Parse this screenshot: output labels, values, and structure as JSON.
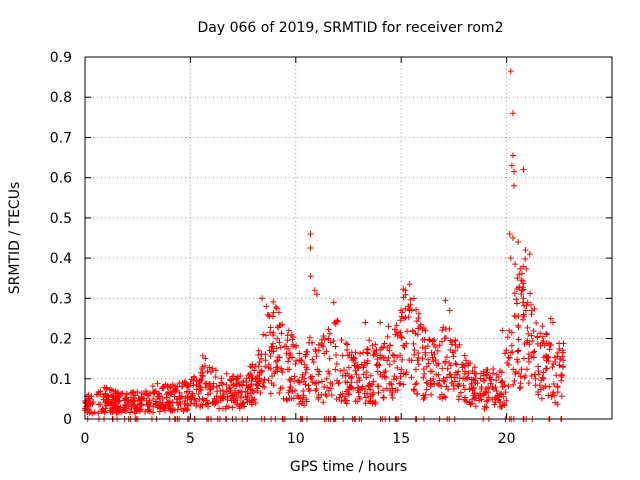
{
  "chart_data": {
    "type": "scatter",
    "title": "Day 066 of 2019, SRMTID for receiver rom2",
    "xlabel": "GPS time / hours",
    "ylabel": "SRMTID / TECUs",
    "xlim": [
      0,
      25
    ],
    "ylim": [
      0,
      0.9
    ],
    "xticks": [
      0,
      5,
      10,
      15,
      20
    ],
    "yticks": [
      0,
      0.1,
      0.2,
      0.3,
      0.4,
      0.5,
      0.6,
      0.7,
      0.8,
      0.9
    ],
    "xtick_labels": [
      "0",
      "5",
      "10",
      "15",
      "20"
    ],
    "ytick_labels": [
      "0",
      "0.1",
      "0.2",
      "0.3",
      "0.4",
      "0.5",
      "0.6",
      "0.7",
      "0.8",
      "0.9"
    ],
    "grid": true,
    "marker": "+",
    "series": [
      {
        "name": "SRMTID",
        "color": "#ff0000",
        "profile": {
          "x": [
            0.0,
            0.5,
            1.0,
            1.5,
            2.0,
            2.5,
            3.0,
            3.5,
            4.0,
            4.5,
            5.0,
            5.3,
            5.6,
            6.0,
            6.5,
            7.0,
            7.5,
            8.0,
            8.3,
            8.6,
            9.0,
            9.5,
            10.0,
            10.4,
            10.7,
            11.0,
            11.5,
            12.0,
            12.5,
            13.0,
            13.5,
            14.0,
            14.5,
            14.9,
            15.2,
            15.5,
            15.8,
            16.2,
            16.6,
            17.0,
            17.4,
            17.8,
            18.2,
            18.6,
            19.0,
            19.5,
            19.9,
            20.2,
            20.5,
            20.8,
            21.1,
            21.5,
            21.9,
            22.3,
            22.7
          ],
          "y": [
            0.03,
            0.04,
            0.045,
            0.04,
            0.035,
            0.04,
            0.045,
            0.05,
            0.05,
            0.05,
            0.055,
            0.07,
            0.09,
            0.08,
            0.065,
            0.06,
            0.06,
            0.08,
            0.1,
            0.14,
            0.17,
            0.13,
            0.11,
            0.09,
            0.12,
            0.1,
            0.13,
            0.14,
            0.1,
            0.09,
            0.11,
            0.1,
            0.12,
            0.15,
            0.2,
            0.19,
            0.15,
            0.12,
            0.11,
            0.13,
            0.14,
            0.1,
            0.08,
            0.07,
            0.07,
            0.07,
            0.09,
            0.14,
            0.2,
            0.24,
            0.18,
            0.14,
            0.12,
            0.1,
            0.11
          ]
        },
        "spikes": [
          [
            8.4,
            0.3
          ],
          [
            8.6,
            0.28
          ],
          [
            9.1,
            0.275
          ],
          [
            9.2,
            0.265
          ],
          [
            10.7,
            0.46
          ],
          [
            10.7,
            0.425
          ],
          [
            10.7,
            0.355
          ],
          [
            10.9,
            0.32
          ],
          [
            11.0,
            0.31
          ],
          [
            11.8,
            0.29
          ],
          [
            13.3,
            0.24
          ],
          [
            14.0,
            0.24
          ],
          [
            14.4,
            0.23
          ],
          [
            15.2,
            0.32
          ],
          [
            15.4,
            0.335
          ],
          [
            15.6,
            0.3
          ],
          [
            17.1,
            0.295
          ],
          [
            17.3,
            0.27
          ],
          [
            19.8,
            0.22
          ],
          [
            20.2,
            0.865
          ],
          [
            20.3,
            0.76
          ],
          [
            20.3,
            0.655
          ],
          [
            20.25,
            0.63
          ],
          [
            20.35,
            0.615
          ],
          [
            20.35,
            0.58
          ],
          [
            20.8,
            0.62
          ],
          [
            20.15,
            0.46
          ],
          [
            20.3,
            0.45
          ],
          [
            20.55,
            0.44
          ],
          [
            20.9,
            0.42
          ],
          [
            21.1,
            0.41
          ],
          [
            20.2,
            0.4
          ],
          [
            20.4,
            0.385
          ],
          [
            20.6,
            0.36
          ],
          [
            20.7,
            0.345
          ],
          [
            20.8,
            0.3
          ],
          [
            21.0,
            0.29
          ],
          [
            21.2,
            0.27
          ],
          [
            22.1,
            0.25
          ],
          [
            22.2,
            0.24
          ]
        ]
      }
    ]
  }
}
